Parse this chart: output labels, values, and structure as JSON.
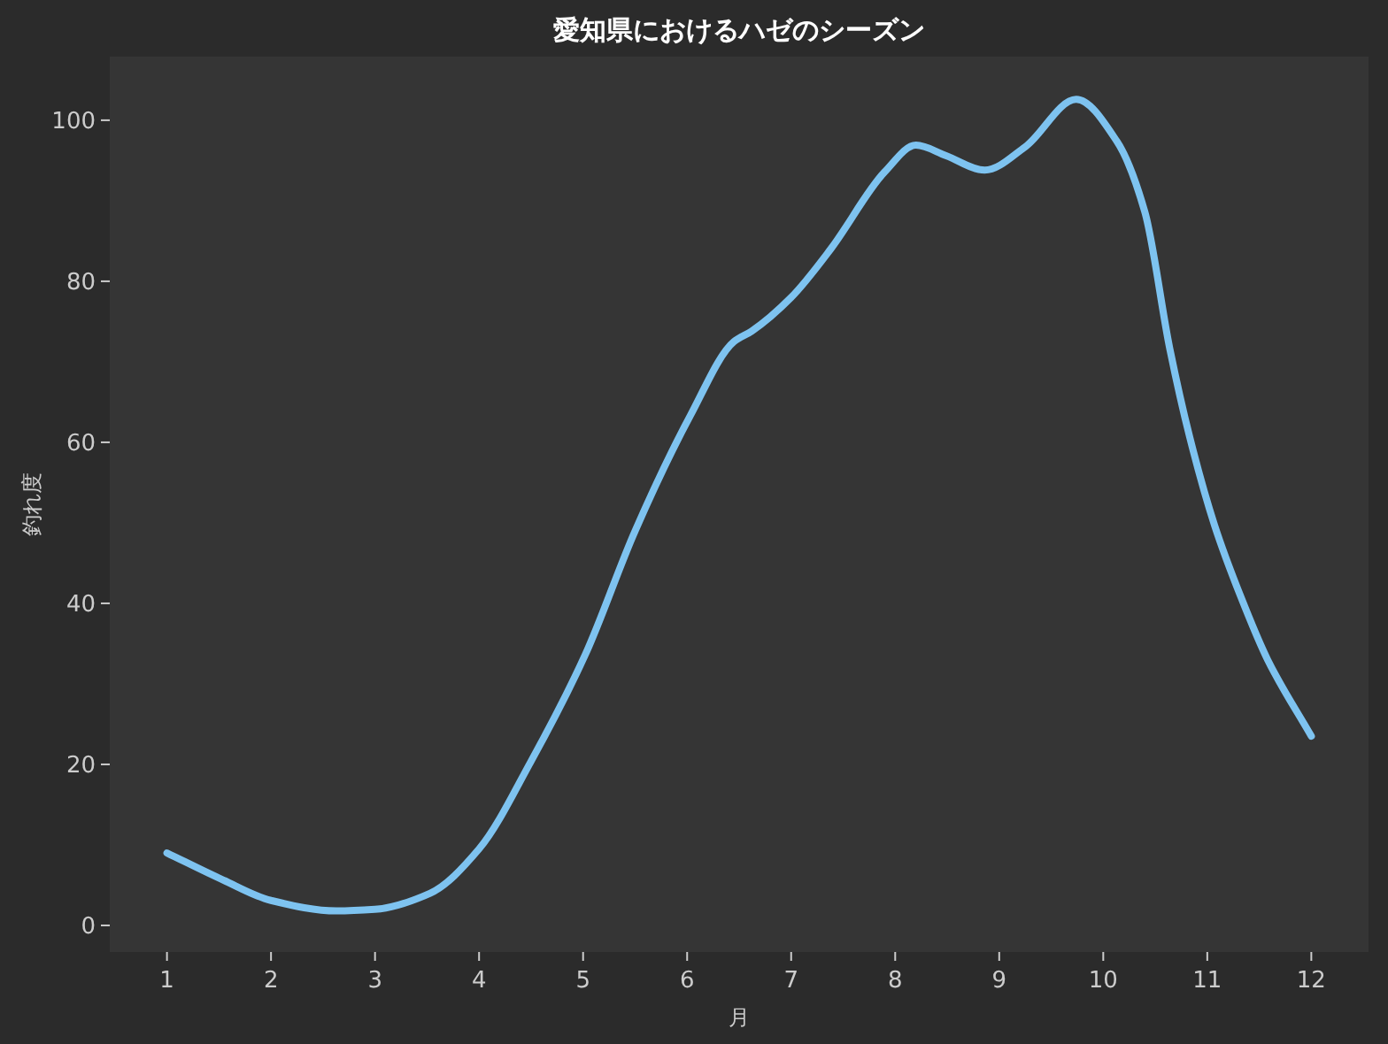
{
  "chart_data": {
    "type": "line",
    "title": "愛知県におけるハゼのシーズン",
    "xlabel": "月",
    "ylabel": "釣れ度",
    "xlim": [
      0.45,
      12.55
    ],
    "ylim": [
      -3.3,
      107.9
    ],
    "xticks": [
      1,
      2,
      3,
      4,
      5,
      6,
      7,
      8,
      9,
      10,
      11,
      12
    ],
    "yticks": [
      0,
      20,
      40,
      60,
      80,
      100
    ],
    "grid": false,
    "marker": "none",
    "line_style": "solid",
    "series": [
      {
        "color": "#7ec3f0",
        "x": [
          1,
          1.53,
          2,
          2.63,
          3,
          3.53,
          4,
          4.5,
          5.02,
          5.5,
          6.03,
          6.45,
          6.62,
          7,
          7.38,
          7.9,
          8.2,
          8.49,
          8.86,
          9.25,
          9.74,
          10.13,
          10.4,
          10.64,
          10.83,
          11.07,
          11.32,
          11.58,
          12
        ],
        "values": [
          9.0,
          5.7,
          3.1,
          1.8,
          2.0,
          4.0,
          9.5,
          20.4,
          33.6,
          49,
          63.3,
          72.5,
          73.8,
          78,
          84,
          93.6,
          96.9,
          95.6,
          93.8,
          96.7,
          102.6,
          97.4,
          88.6,
          71.6,
          60.7,
          49.7,
          40.9,
          33,
          23.5
        ]
      }
    ]
  }
}
